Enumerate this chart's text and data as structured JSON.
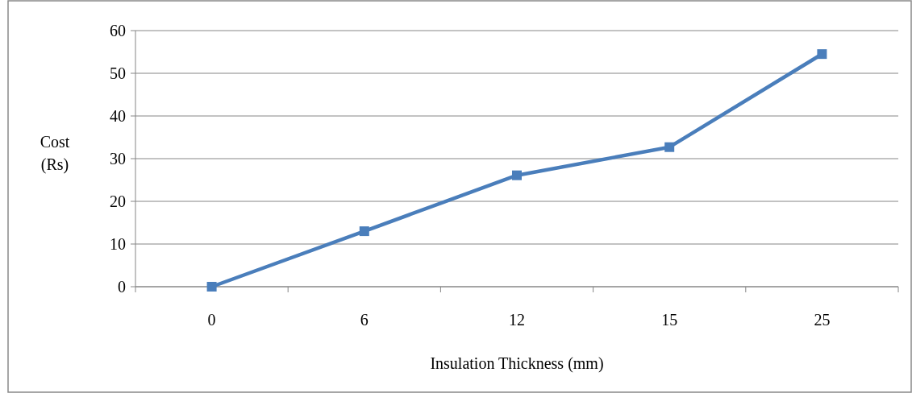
{
  "chart_data": {
    "type": "line",
    "xlabel": "Insulation Thickness (mm)",
    "ylabel": "Cost (Rs)",
    "categories": [
      "0",
      "6",
      "12",
      "15",
      "25"
    ],
    "series": [
      {
        "color": "#4a7ebb",
        "values": [
          0,
          13,
          26.1,
          32.7,
          54.5
        ]
      }
    ],
    "ylim": [
      0,
      60
    ],
    "yticks": [
      0,
      10,
      20,
      30,
      40,
      50,
      60
    ],
    "grid": "y",
    "marker": "square",
    "line_style": "solid"
  }
}
